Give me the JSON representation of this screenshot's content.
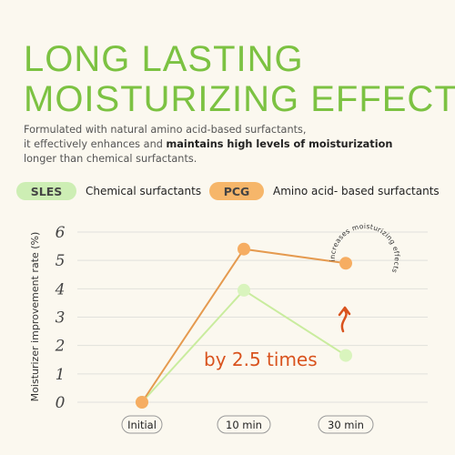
{
  "headline": {
    "line1": "LONG LASTING",
    "line2": "MOISTURIZING EFFECT"
  },
  "description": {
    "part1": "Formulated with natural amino acid-based surfactants,",
    "part2": "it effectively enhances and ",
    "bold": "maintains high levels of moisturization",
    "part3": "longer than chemical surfactants."
  },
  "legend": [
    {
      "badge": "SLES",
      "text": "Chemical surfactants",
      "color": "#cdeeb4"
    },
    {
      "badge": "PCG",
      "text": "Amino acid- based surfactants",
      "color": "#f6b66a"
    }
  ],
  "chart_data": {
    "type": "line",
    "categories": [
      "Initial",
      "10 min",
      "30 min"
    ],
    "ylabel": "Moisturizer improvement rate (%)",
    "xlabel": "",
    "ylim": [
      0,
      6
    ],
    "yticks": [
      "0",
      "1",
      "2",
      "3",
      "4",
      "5",
      "6"
    ],
    "grid": true,
    "series": [
      {
        "name": "SLES",
        "values": [
          0,
          3.95,
          1.65
        ],
        "color": "#c9ec9e",
        "marker_color": "#d9f4bd"
      },
      {
        "name": "PCG",
        "values": [
          0,
          5.4,
          4.9
        ],
        "color": "#e59a4f",
        "marker_color": "#f6ad62"
      }
    ],
    "annotations": {
      "ratio": "by 2.5 times",
      "curved": "increases moisturizing effects",
      "ratio_color": "#d9531e"
    }
  }
}
